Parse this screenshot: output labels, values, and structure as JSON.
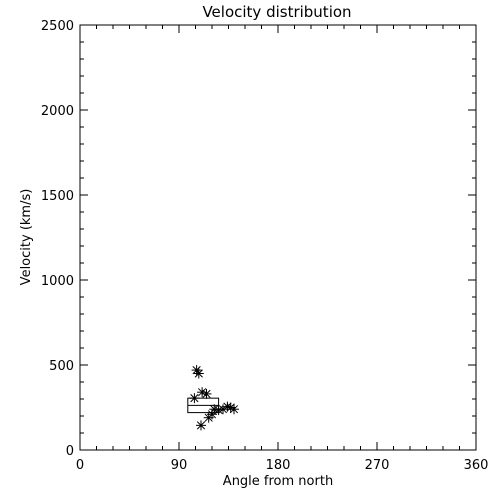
{
  "chart_data": {
    "type": "scatter",
    "title": "Velocity distribution",
    "xlabel": "Angle from north",
    "ylabel": "Velocity (km/s)",
    "xlim": [
      0,
      360
    ],
    "ylim": [
      0,
      2500
    ],
    "xticks": [
      "0",
      "90",
      "180",
      "270",
      "360"
    ],
    "yticks": [
      "0",
      "500",
      "1000",
      "1500",
      "2000",
      "2500"
    ],
    "marker": "asterisk",
    "grid": false,
    "points": [
      {
        "x": 106,
        "y": 470
      },
      {
        "x": 108,
        "y": 450
      },
      {
        "x": 104,
        "y": 305
      },
      {
        "x": 111,
        "y": 340
      },
      {
        "x": 115,
        "y": 330
      },
      {
        "x": 110,
        "y": 145
      },
      {
        "x": 117,
        "y": 190
      },
      {
        "x": 120,
        "y": 210
      },
      {
        "x": 122,
        "y": 240
      },
      {
        "x": 126,
        "y": 235
      },
      {
        "x": 130,
        "y": 240
      },
      {
        "x": 134,
        "y": 255
      },
      {
        "x": 137,
        "y": 250
      },
      {
        "x": 140,
        "y": 240
      }
    ],
    "box": {
      "x": [
        98,
        126
      ],
      "y": [
        220,
        305
      ]
    }
  }
}
